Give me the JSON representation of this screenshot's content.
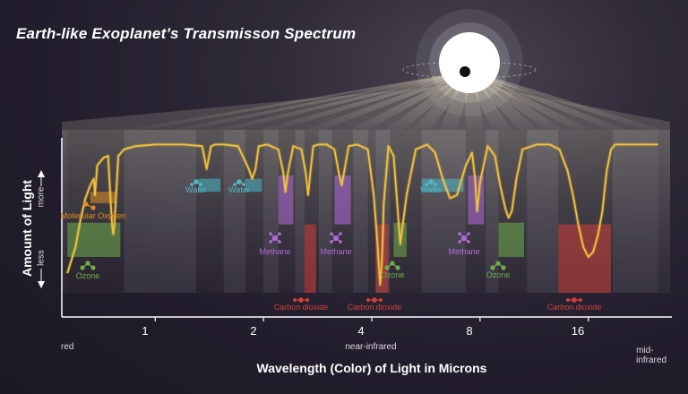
{
  "chart_data": {
    "type": "line",
    "title": "Earth-like Exoplanet’s Transmisson Spectrum",
    "ylabel": "Amount of Light",
    "y_more_label": "more",
    "y_less_label": "less",
    "xlabel": "Wavelength (Color) of Light in Microns",
    "x_scale": "log",
    "xlim": [
      0.55,
      27
    ],
    "x_ticks": [
      {
        "value": 1,
        "label": "1"
      },
      {
        "value": 2,
        "label": "2"
      },
      {
        "value": 4,
        "label": "4"
      },
      {
        "value": 8,
        "label": "8"
      },
      {
        "value": 16,
        "label": "16"
      }
    ],
    "band_labels": {
      "red": "red",
      "near_infrared": "near-infrared",
      "mid_infrared": "mid-infrared"
    },
    "series": [
      {
        "color": "#f2c23a",
        "x": [
          0.57,
          0.6,
          0.62,
          0.64,
          0.66,
          0.675,
          0.68,
          0.69,
          0.7,
          0.72,
          0.74,
          0.75,
          0.76,
          0.765,
          0.77,
          0.79,
          0.82,
          0.88,
          1.0,
          1.2,
          1.35,
          1.39,
          1.43,
          1.47,
          1.55,
          1.7,
          1.82,
          1.86,
          1.9,
          1.94,
          2.05,
          2.2,
          2.27,
          2.3,
          2.34,
          2.42,
          2.55,
          2.62,
          2.66,
          2.7,
          2.75,
          2.85,
          3.0,
          3.15,
          3.25,
          3.3,
          3.35,
          3.45,
          3.65,
          3.9,
          4.05,
          4.15,
          4.22,
          4.27,
          4.32,
          4.45,
          4.6,
          4.8,
          5.0,
          5.3,
          5.7,
          6.0,
          6.3,
          6.6,
          6.9,
          7.3,
          7.6,
          7.75,
          7.85,
          8.0,
          8.4,
          8.8,
          9.1,
          9.4,
          9.6,
          9.8,
          10.1,
          10.5,
          11.5,
          12.5,
          13.3,
          14.0,
          14.5,
          15.0,
          15.5,
          16.0,
          16.5,
          17.0,
          17.5,
          18.0,
          18.5,
          19.0,
          20.0,
          22.0,
          25.0
        ],
        "y": [
          0.12,
          0.28,
          0.45,
          0.58,
          0.66,
          0.7,
          0.6,
          0.78,
          0.8,
          0.83,
          0.84,
          0.6,
          0.4,
          0.36,
          0.42,
          0.84,
          0.88,
          0.9,
          0.91,
          0.91,
          0.9,
          0.76,
          0.9,
          0.91,
          0.91,
          0.9,
          0.76,
          0.7,
          0.76,
          0.9,
          0.91,
          0.88,
          0.74,
          0.62,
          0.74,
          0.9,
          0.88,
          0.74,
          0.6,
          0.74,
          0.9,
          0.91,
          0.91,
          0.88,
          0.72,
          0.66,
          0.74,
          0.9,
          0.91,
          0.88,
          0.6,
          0.3,
          0.05,
          0.2,
          0.55,
          0.9,
          0.84,
          0.3,
          0.6,
          0.88,
          0.91,
          0.86,
          0.7,
          0.58,
          0.6,
          0.78,
          0.86,
          0.7,
          0.5,
          0.68,
          0.9,
          0.84,
          0.66,
          0.52,
          0.46,
          0.5,
          0.7,
          0.88,
          0.91,
          0.91,
          0.88,
          0.75,
          0.6,
          0.42,
          0.28,
          0.22,
          0.25,
          0.35,
          0.5,
          0.75,
          0.88,
          0.91,
          0.91,
          0.91,
          0.91
        ]
      }
    ],
    "absorption_bands": [
      {
        "molecule": "Molecular Oxygen",
        "x_center": 0.7,
        "x_range": [
          0.66,
          0.78
        ],
        "color": "#e08e20",
        "depth": 0.35
      },
      {
        "molecule": "Ozone",
        "x_center": 0.62,
        "x_range": [
          0.57,
          0.8
        ],
        "color": "#6fae4b",
        "depth": 0.55
      },
      {
        "molecule": "Water",
        "x_center": 1.4,
        "x_range": [
          1.32,
          1.52
        ],
        "color": "#4fb8c8",
        "depth": 0.2
      },
      {
        "molecule": "Water",
        "x_center": 1.88,
        "x_range": [
          1.78,
          1.98
        ],
        "color": "#4fb8c8",
        "depth": 0.2
      },
      {
        "molecule": "Methane",
        "x_center": 2.3,
        "x_range": [
          2.2,
          2.42
        ],
        "color": "#b06ad8",
        "depth": 0.4
      },
      {
        "molecule": "Methane",
        "x_center": 3.3,
        "x_range": [
          3.15,
          3.5
        ],
        "color": "#b06ad8",
        "depth": 0.4
      },
      {
        "molecule": "Carbon dioxide",
        "x_center": 2.7,
        "x_range": [
          2.6,
          2.8
        ],
        "color": "#d2403a",
        "depth": 0.68
      },
      {
        "molecule": "Carbon dioxide",
        "x_center": 4.3,
        "x_range": [
          4.1,
          4.45
        ],
        "color": "#d2403a",
        "depth": 0.68
      },
      {
        "molecule": "Ozone",
        "x_center": 4.8,
        "x_range": [
          4.6,
          5.0
        ],
        "color": "#6fae4b",
        "depth": 0.55
      },
      {
        "molecule": "Water",
        "x_center": 6.3,
        "x_range": [
          5.5,
          7.2
        ],
        "color": "#4fb8c8",
        "depth": 0.2
      },
      {
        "molecule": "Methane",
        "x_center": 7.7,
        "x_range": [
          7.4,
          8.2
        ],
        "color": "#b06ad8",
        "depth": 0.4
      },
      {
        "molecule": "Ozone",
        "x_center": 9.6,
        "x_range": [
          9.0,
          10.6
        ],
        "color": "#6fae4b",
        "depth": 0.55
      },
      {
        "molecule": "Carbon dioxide",
        "x_center": 15.0,
        "x_range": [
          13.2,
          18.5
        ],
        "color": "#d2403a",
        "depth": 0.68
      }
    ]
  }
}
